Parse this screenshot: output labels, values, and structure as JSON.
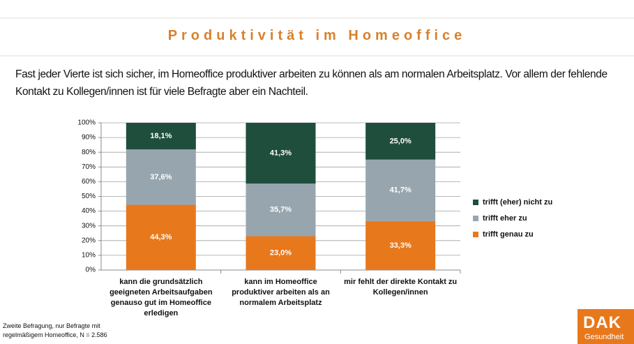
{
  "chart_data": {
    "type": "stacked-bar",
    "title": "Produktivität im Homeoffice",
    "subtitle": "Fast jeder Vierte ist sich sicher, im Homeoffice produktiver arbeiten zu können als am normalen Arbeitsplatz. Vor allem der fehlende Kontakt zu Kollegen/innen ist für viele Befragte aber ein Nachteil.",
    "note": "Zweite Befragung, nur Befragte mit regelmäßigem Homeoffice, N = 2.586",
    "categories": [
      "kann die grundsätzlich geeigneten Arbeitsaufgaben genauso gut im Homeoffice erledigen",
      "kann im Homeoffice produktiver arbeiten als an normalem Arbeitsplatz",
      "mir fehlt der direkte Kontakt zu Kollegen/innen"
    ],
    "series": [
      {
        "name": "trifft genau zu",
        "color": "#e8781c",
        "values": [
          44.3,
          23.0,
          33.3
        ],
        "value_labels": [
          "44,3%",
          "23,0%",
          "33,3%"
        ]
      },
      {
        "name": "trifft eher zu",
        "color": "#97a6ae",
        "values": [
          37.6,
          35.7,
          41.7
        ],
        "value_labels": [
          "37,6%",
          "35,7%",
          "41,7%"
        ]
      },
      {
        "name": "trifft (eher) nicht zu",
        "color": "#1f4e3d",
        "values": [
          18.1,
          41.3,
          25.0
        ],
        "value_labels": [
          "18,1%",
          "41,3%",
          "25,0%"
        ]
      }
    ],
    "ylim": [
      0,
      100
    ],
    "yticks": [
      {
        "value": 0,
        "label": "0%"
      },
      {
        "value": 10,
        "label": "10%"
      },
      {
        "value": 20,
        "label": "20%"
      },
      {
        "value": 30,
        "label": "30%"
      },
      {
        "value": 40,
        "label": "40%"
      },
      {
        "value": 50,
        "label": "50%"
      },
      {
        "value": 60,
        "label": "60%"
      },
      {
        "value": 70,
        "label": "70%"
      },
      {
        "value": 80,
        "label": "80%"
      },
      {
        "value": 90,
        "label": "90%"
      },
      {
        "value": 100,
        "label": "100%"
      }
    ],
    "grid": true,
    "legend": "right"
  },
  "logo": {
    "name": "DAK",
    "subtitle": "Gesundheit"
  }
}
